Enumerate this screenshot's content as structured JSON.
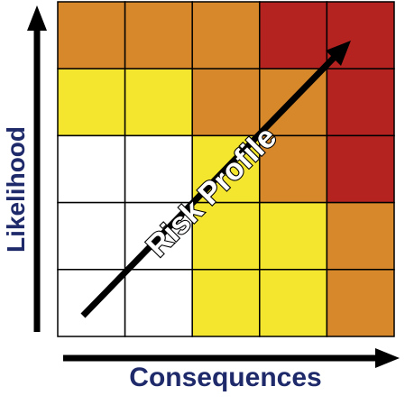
{
  "axes": {
    "y_label": "Likelihood",
    "x_label": "Consequences"
  },
  "diagonal_label": "Risk Profile",
  "colors": {
    "white": "#ffffff",
    "yellow": "#f4e62e",
    "orange": "#d7882a",
    "red": "#b52321",
    "grid_line": "#000000",
    "label_text": "#1f2a6b"
  },
  "grid": {
    "rows": 5,
    "cols": 5,
    "cells": [
      [
        "orange",
        "orange",
        "orange",
        "red",
        "red"
      ],
      [
        "yellow",
        "yellow",
        "orange",
        "orange",
        "red"
      ],
      [
        "white",
        "white",
        "yellow",
        "orange",
        "red"
      ],
      [
        "white",
        "white",
        "yellow",
        "yellow",
        "orange"
      ],
      [
        "white",
        "white",
        "yellow",
        "yellow",
        "orange"
      ]
    ]
  }
}
